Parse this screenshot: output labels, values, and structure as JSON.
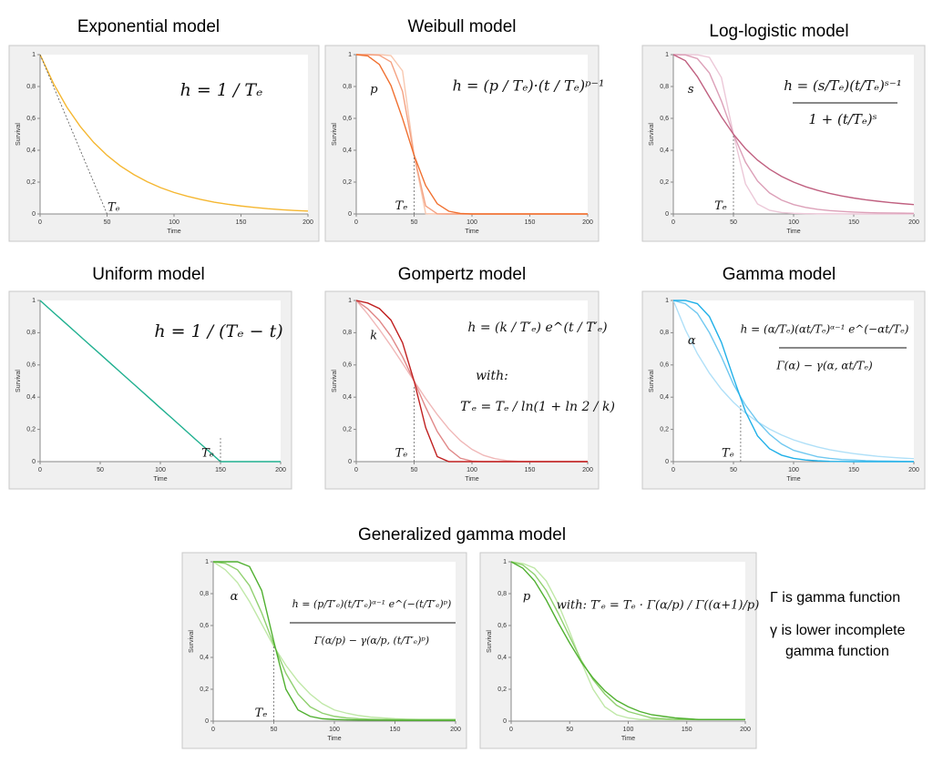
{
  "chart_data": [
    {
      "type": "line",
      "title": "Exponential model",
      "xlabel": "Time",
      "ylabel": "Survival",
      "x": [
        0,
        10,
        20,
        30,
        40,
        50,
        60,
        70,
        80,
        90,
        100,
        110,
        120,
        130,
        140,
        150,
        160,
        170,
        180,
        190,
        200
      ],
      "series": [
        {
          "color": "#f5b731",
          "values": [
            1,
            0.819,
            0.67,
            0.549,
            0.449,
            0.368,
            0.301,
            0.247,
            0.202,
            0.165,
            0.135,
            0.111,
            0.091,
            0.074,
            0.061,
            0.05,
            0.041,
            0.033,
            0.027,
            0.022,
            0.018
          ]
        },
        {
          "color": "#555555",
          "dash": true,
          "values": [
            1,
            0.8,
            0.6,
            0.4,
            0.2,
            0,
            null,
            null,
            null,
            null,
            null,
            null,
            null,
            null,
            null,
            null,
            null,
            null,
            null,
            null,
            null
          ]
        }
      ],
      "xlim": [
        0,
        200
      ],
      "xticks": [
        0,
        50,
        100,
        150,
        200
      ],
      "ylim": [
        0,
        1
      ],
      "yticks": [
        0,
        {
          "value": 0.2,
          "label": "0,2"
        },
        {
          "value": 0.4,
          "label": "0,4"
        },
        {
          "value": 0.6,
          "label": "0,6"
        },
        {
          "value": 0.8,
          "label": "0,8"
        },
        1
      ],
      "te_label": "Tₑ",
      "formula": [
        "h = 1 / Tₑ"
      ]
    },
    {
      "type": "line",
      "title": "Weibull model",
      "xlabel": "Time",
      "ylabel": "Survival",
      "x": [
        0,
        10,
        20,
        30,
        40,
        50,
        60,
        70,
        80,
        90,
        100,
        110,
        120,
        130,
        140,
        150,
        160,
        170,
        180,
        190,
        200
      ],
      "series": [
        {
          "color": "#f8c8b0",
          "values": [
            1,
            1,
            1,
            0.994,
            0.898,
            0.368,
            0.002,
            0,
            0,
            0,
            0,
            0,
            0,
            0,
            0,
            0,
            0,
            0,
            0,
            0,
            0
          ]
        },
        {
          "color": "#f4a080",
          "values": [
            1,
            1,
            0.996,
            0.954,
            0.769,
            0.368,
            0.05,
            0.001,
            0,
            0,
            0,
            0,
            0,
            0,
            0,
            0,
            0,
            0,
            0,
            0,
            0
          ]
        },
        {
          "color": "#f07030",
          "values": [
            1,
            0.992,
            0.938,
            0.806,
            0.599,
            0.368,
            0.178,
            0.064,
            0.017,
            0.003,
            0,
            0,
            0,
            0,
            0,
            0,
            0,
            0,
            0,
            0,
            0
          ]
        }
      ],
      "xlim": [
        0,
        200
      ],
      "xticks": [
        0,
        50,
        100,
        150,
        200
      ],
      "ylim": [
        0,
        1
      ],
      "yticks": [
        0,
        {
          "value": 0.2,
          "label": "0,2"
        },
        {
          "value": 0.4,
          "label": "0,4"
        },
        {
          "value": 0.6,
          "label": "0,6"
        },
        {
          "value": 0.8,
          "label": "0,8"
        },
        1
      ],
      "te_line": {
        "x": 50,
        "y": 0.37
      },
      "te_label": "Tₑ",
      "param_label": "p",
      "formula": [
        "h = (p / Tₑ)·(t / Tₑ)ᵖ⁻¹"
      ]
    },
    {
      "type": "line",
      "title": "Log-logistic model",
      "xlabel": "Time",
      "ylabel": "Survival",
      "x": [
        0,
        10,
        20,
        30,
        40,
        50,
        60,
        70,
        80,
        90,
        100,
        110,
        120,
        130,
        140,
        150,
        160,
        170,
        180,
        190,
        200
      ],
      "series": [
        {
          "color": "#ecc8d8",
          "values": [
            1,
            1,
            0.999,
            0.983,
            0.856,
            0.5,
            0.189,
            0.063,
            0.023,
            0.009,
            0.004,
            0.002,
            0.001,
            0.001,
            0.001,
            0,
            0,
            0,
            0,
            0,
            0
          ]
        },
        {
          "color": "#dca0b8",
          "values": [
            1,
            0.998,
            0.975,
            0.885,
            0.709,
            0.5,
            0.325,
            0.207,
            0.132,
            0.087,
            0.059,
            0.041,
            0.029,
            0.021,
            0.016,
            0.012,
            0.009,
            0.007,
            0.006,
            0.005,
            0.004
          ]
        },
        {
          "color": "#c06080",
          "values": [
            1,
            0.962,
            0.862,
            0.735,
            0.61,
            0.5,
            0.41,
            0.338,
            0.281,
            0.236,
            0.2,
            0.171,
            0.148,
            0.129,
            0.113,
            0.1,
            0.089,
            0.08,
            0.072,
            0.065,
            0.059
          ]
        }
      ],
      "xlim": [
        0,
        200
      ],
      "xticks": [
        0,
        50,
        100,
        150,
        200
      ],
      "ylim": [
        0,
        1
      ],
      "yticks": [
        0,
        {
          "value": 0.2,
          "label": "0,2"
        },
        {
          "value": 0.4,
          "label": "0,4"
        },
        {
          "value": 0.6,
          "label": "0,6"
        },
        {
          "value": 0.8,
          "label": "0,8"
        },
        1
      ],
      "te_line": {
        "x": 50,
        "y": 0.5
      },
      "te_label": "Tₑ",
      "param_label": "s",
      "formula": [
        "h = (s/Tₑ)(t/Tₑ)ˢ⁻¹",
        "1 + (t/Tₑ)ˢ"
      ]
    },
    {
      "type": "line",
      "title": "Uniform model",
      "xlabel": "Time",
      "ylabel": "Survival",
      "x": [
        0,
        10,
        20,
        30,
        40,
        50,
        60,
        70,
        80,
        90,
        100,
        110,
        120,
        130,
        140,
        150,
        160,
        170,
        180,
        190,
        200
      ],
      "series": [
        {
          "color": "#20b090",
          "values": [
            1,
            0.933,
            0.867,
            0.8,
            0.733,
            0.667,
            0.6,
            0.533,
            0.467,
            0.4,
            0.333,
            0.267,
            0.2,
            0.133,
            0.067,
            0,
            0,
            0,
            0,
            0,
            0
          ]
        }
      ],
      "xlim": [
        0,
        200
      ],
      "xticks": [
        0,
        50,
        100,
        150,
        200
      ],
      "ylim": [
        0,
        1
      ],
      "yticks": [
        0,
        {
          "value": 0.2,
          "label": "0,2"
        },
        {
          "value": 0.4,
          "label": "0,4"
        },
        {
          "value": 0.6,
          "label": "0,6"
        },
        {
          "value": 0.8,
          "label": "0,8"
        },
        1
      ],
      "te_line": {
        "x": 150,
        "y": 0.15
      },
      "te_label": "Tₑ",
      "formula": [
        "h = 1 / (Tₑ − t)"
      ]
    },
    {
      "type": "line",
      "title": "Gompertz model",
      "xlabel": "Time",
      "ylabel": "Survival",
      "x": [
        0,
        10,
        20,
        30,
        40,
        50,
        60,
        70,
        80,
        90,
        100,
        110,
        120,
        130,
        140,
        150,
        160,
        170,
        180,
        190,
        200
      ],
      "series": [
        {
          "color": "#f0b8b8",
          "values": [
            1,
            0.915,
            0.82,
            0.718,
            0.61,
            0.5,
            0.392,
            0.292,
            0.203,
            0.13,
            0.076,
            0.039,
            0.018,
            0.007,
            0.002,
            0.001,
            0,
            0,
            0,
            0,
            0
          ]
        },
        {
          "color": "#e08888",
          "values": [
            1,
            0.948,
            0.875,
            0.778,
            0.651,
            0.5,
            0.337,
            0.187,
            0.078,
            0.021,
            0.003,
            0,
            0,
            0,
            0,
            0,
            0,
            0,
            0,
            0,
            0
          ]
        },
        {
          "color": "#c02020",
          "values": [
            1,
            0.984,
            0.95,
            0.878,
            0.738,
            0.5,
            0.211,
            0.031,
            0,
            0,
            0,
            0,
            0,
            0,
            0,
            0,
            0,
            0,
            0,
            0,
            0
          ]
        }
      ],
      "xlim": [
        0,
        200
      ],
      "xticks": [
        0,
        50,
        100,
        150,
        200
      ],
      "ylim": [
        0,
        1
      ],
      "yticks": [
        0,
        {
          "value": 0.2,
          "label": "0,2"
        },
        {
          "value": 0.4,
          "label": "0,4"
        },
        {
          "value": 0.6,
          "label": "0,6"
        },
        {
          "value": 0.8,
          "label": "0,8"
        },
        1
      ],
      "te_line": {
        "x": 50,
        "y": 0.47
      },
      "te_label": "Tₑ",
      "param_label": "k",
      "formula": [
        "h = (k / T′ₑ) e^(t / T′ₑ)",
        "with:",
        "T′ₑ = Tₑ / ln(1 + ln 2 / k)"
      ]
    },
    {
      "type": "line",
      "title": "Gamma model",
      "xlabel": "Time",
      "ylabel": "Survival",
      "x": [
        0,
        10,
        20,
        30,
        40,
        50,
        60,
        70,
        80,
        90,
        100,
        110,
        120,
        130,
        140,
        150,
        160,
        170,
        180,
        190,
        200
      ],
      "series": [
        {
          "color": "#b0e0f8",
          "values": [
            1,
            0.819,
            0.67,
            0.549,
            0.449,
            0.368,
            0.301,
            0.247,
            0.202,
            0.165,
            0.135,
            0.111,
            0.091,
            0.074,
            0.061,
            0.05,
            0.041,
            0.033,
            0.027,
            0.022,
            0.018
          ]
        },
        {
          "color": "#70c8f0",
          "values": [
            1,
            0.98,
            0.92,
            0.8,
            0.65,
            0.48,
            0.35,
            0.25,
            0.17,
            0.11,
            0.07,
            0.05,
            0.03,
            0.02,
            0.013,
            0.01,
            0.006,
            0.004,
            0.003,
            0.002,
            0.001
          ]
        },
        {
          "color": "#20b0e8",
          "values": [
            1,
            1,
            0.98,
            0.9,
            0.74,
            0.52,
            0.31,
            0.16,
            0.08,
            0.04,
            0.02,
            0.01,
            0.005,
            0.002,
            0.001,
            0,
            0,
            0,
            0,
            0,
            0
          ]
        }
      ],
      "xlim": [
        0,
        200
      ],
      "xticks": [
        0,
        50,
        100,
        150,
        200
      ],
      "ylim": [
        0,
        1
      ],
      "yticks": [
        0,
        {
          "value": 0.2,
          "label": "0,2"
        },
        {
          "value": 0.4,
          "label": "0,4"
        },
        {
          "value": 0.6,
          "label": "0,6"
        },
        {
          "value": 0.8,
          "label": "0,8"
        },
        1
      ],
      "te_line": {
        "x": 56,
        "y": 0.35
      },
      "te_label": "Tₑ",
      "param_label": "α",
      "formula": [
        "h = (α/Tₑ)(αt/Tₑ)ᵅ⁻¹ e^(−αt/Tₑ)",
        "Γ(α) − γ(α, αt/Tₑ)"
      ]
    },
    {
      "type": "line",
      "xlabel": "Time",
      "ylabel": "Survival",
      "x": [
        0,
        10,
        20,
        30,
        40,
        50,
        60,
        70,
        80,
        90,
        100,
        110,
        120,
        130,
        140,
        150,
        160,
        170,
        180,
        190,
        200
      ],
      "series": [
        {
          "color": "#c0e8a8",
          "values": [
            1,
            0.95,
            0.87,
            0.75,
            0.61,
            0.47,
            0.35,
            0.25,
            0.17,
            0.11,
            0.07,
            0.05,
            0.035,
            0.025,
            0.02,
            0.015,
            0.012,
            0.01,
            0.01,
            0.01,
            0.01
          ]
        },
        {
          "color": "#90d070",
          "values": [
            1,
            0.99,
            0.95,
            0.85,
            0.68,
            0.48,
            0.3,
            0.17,
            0.09,
            0.05,
            0.03,
            0.02,
            0.015,
            0.012,
            0.01,
            0.01,
            0.01,
            0.01,
            0.01,
            0.01,
            0.01
          ]
        },
        {
          "color": "#50b030",
          "values": [
            1,
            1,
            1,
            0.97,
            0.82,
            0.5,
            0.2,
            0.07,
            0.03,
            0.015,
            0.01,
            0.008,
            0.007,
            0.006,
            0.006,
            0.005,
            0.005,
            0.005,
            0.005,
            0.005,
            0.005
          ]
        }
      ],
      "xlim": [
        0,
        200
      ],
      "xticks": [
        0,
        50,
        100,
        150,
        200
      ],
      "ylim": [
        0,
        1
      ],
      "yticks": [
        0,
        {
          "value": 0.2,
          "label": "0,2"
        },
        {
          "value": 0.4,
          "label": "0,4"
        },
        {
          "value": 0.6,
          "label": "0,6"
        },
        {
          "value": 0.8,
          "label": "0,8"
        },
        1
      ],
      "te_line": {
        "x": 50,
        "y": 0.48
      },
      "te_label": "Tₑ",
      "param_label": "α",
      "formula": [
        "h = (p/T′ₑ)(t/T′ₑ)ᵅ⁻¹ e^(−(t/T′ₑ)ᵖ)",
        "Γ(α/p) − γ(α/p, (t/T′ₑ)ᵖ)"
      ]
    },
    {
      "type": "line",
      "xlabel": "Time",
      "ylabel": "Survival",
      "x": [
        0,
        10,
        20,
        30,
        40,
        50,
        60,
        70,
        80,
        90,
        100,
        110,
        120,
        130,
        140,
        150,
        160,
        170,
        180,
        190,
        200
      ],
      "series": [
        {
          "color": "#c0e8a8",
          "values": [
            1,
            0.99,
            0.96,
            0.88,
            0.74,
            0.56,
            0.37,
            0.2,
            0.09,
            0.04,
            0.02,
            0.01,
            0.01,
            0.01,
            0.01,
            0.01,
            0.01,
            0.01,
            0.01,
            0.01,
            0.01
          ]
        },
        {
          "color": "#90d070",
          "values": [
            1,
            0.98,
            0.92,
            0.82,
            0.68,
            0.53,
            0.38,
            0.26,
            0.17,
            0.1,
            0.06,
            0.04,
            0.02,
            0.015,
            0.01,
            0.01,
            0.01,
            0.01,
            0.01,
            0.01,
            0.01
          ]
        },
        {
          "color": "#50b030",
          "values": [
            1,
            0.96,
            0.88,
            0.76,
            0.62,
            0.49,
            0.37,
            0.27,
            0.19,
            0.13,
            0.09,
            0.06,
            0.04,
            0.03,
            0.02,
            0.015,
            0.01,
            0.01,
            0.01,
            0.01,
            0.01
          ]
        }
      ],
      "xlim": [
        0,
        200
      ],
      "xticks": [
        0,
        50,
        100,
        150,
        200
      ],
      "ylim": [
        0,
        1
      ],
      "yticks": [
        0,
        {
          "value": 0.2,
          "label": "0,2"
        },
        {
          "value": 0.4,
          "label": "0,4"
        },
        {
          "value": 0.6,
          "label": "0,6"
        },
        {
          "value": 0.8,
          "label": "0,8"
        },
        1
      ],
      "param_label": "p",
      "formula": [
        "with:  T′ₑ = Tₑ · Γ(α/p) / Γ((α+1)/p)"
      ]
    }
  ],
  "group_title": "Generalized gamma model",
  "notes": [
    "Γ  is gamma function",
    "γ  is lower incomplete",
    "gamma function"
  ]
}
